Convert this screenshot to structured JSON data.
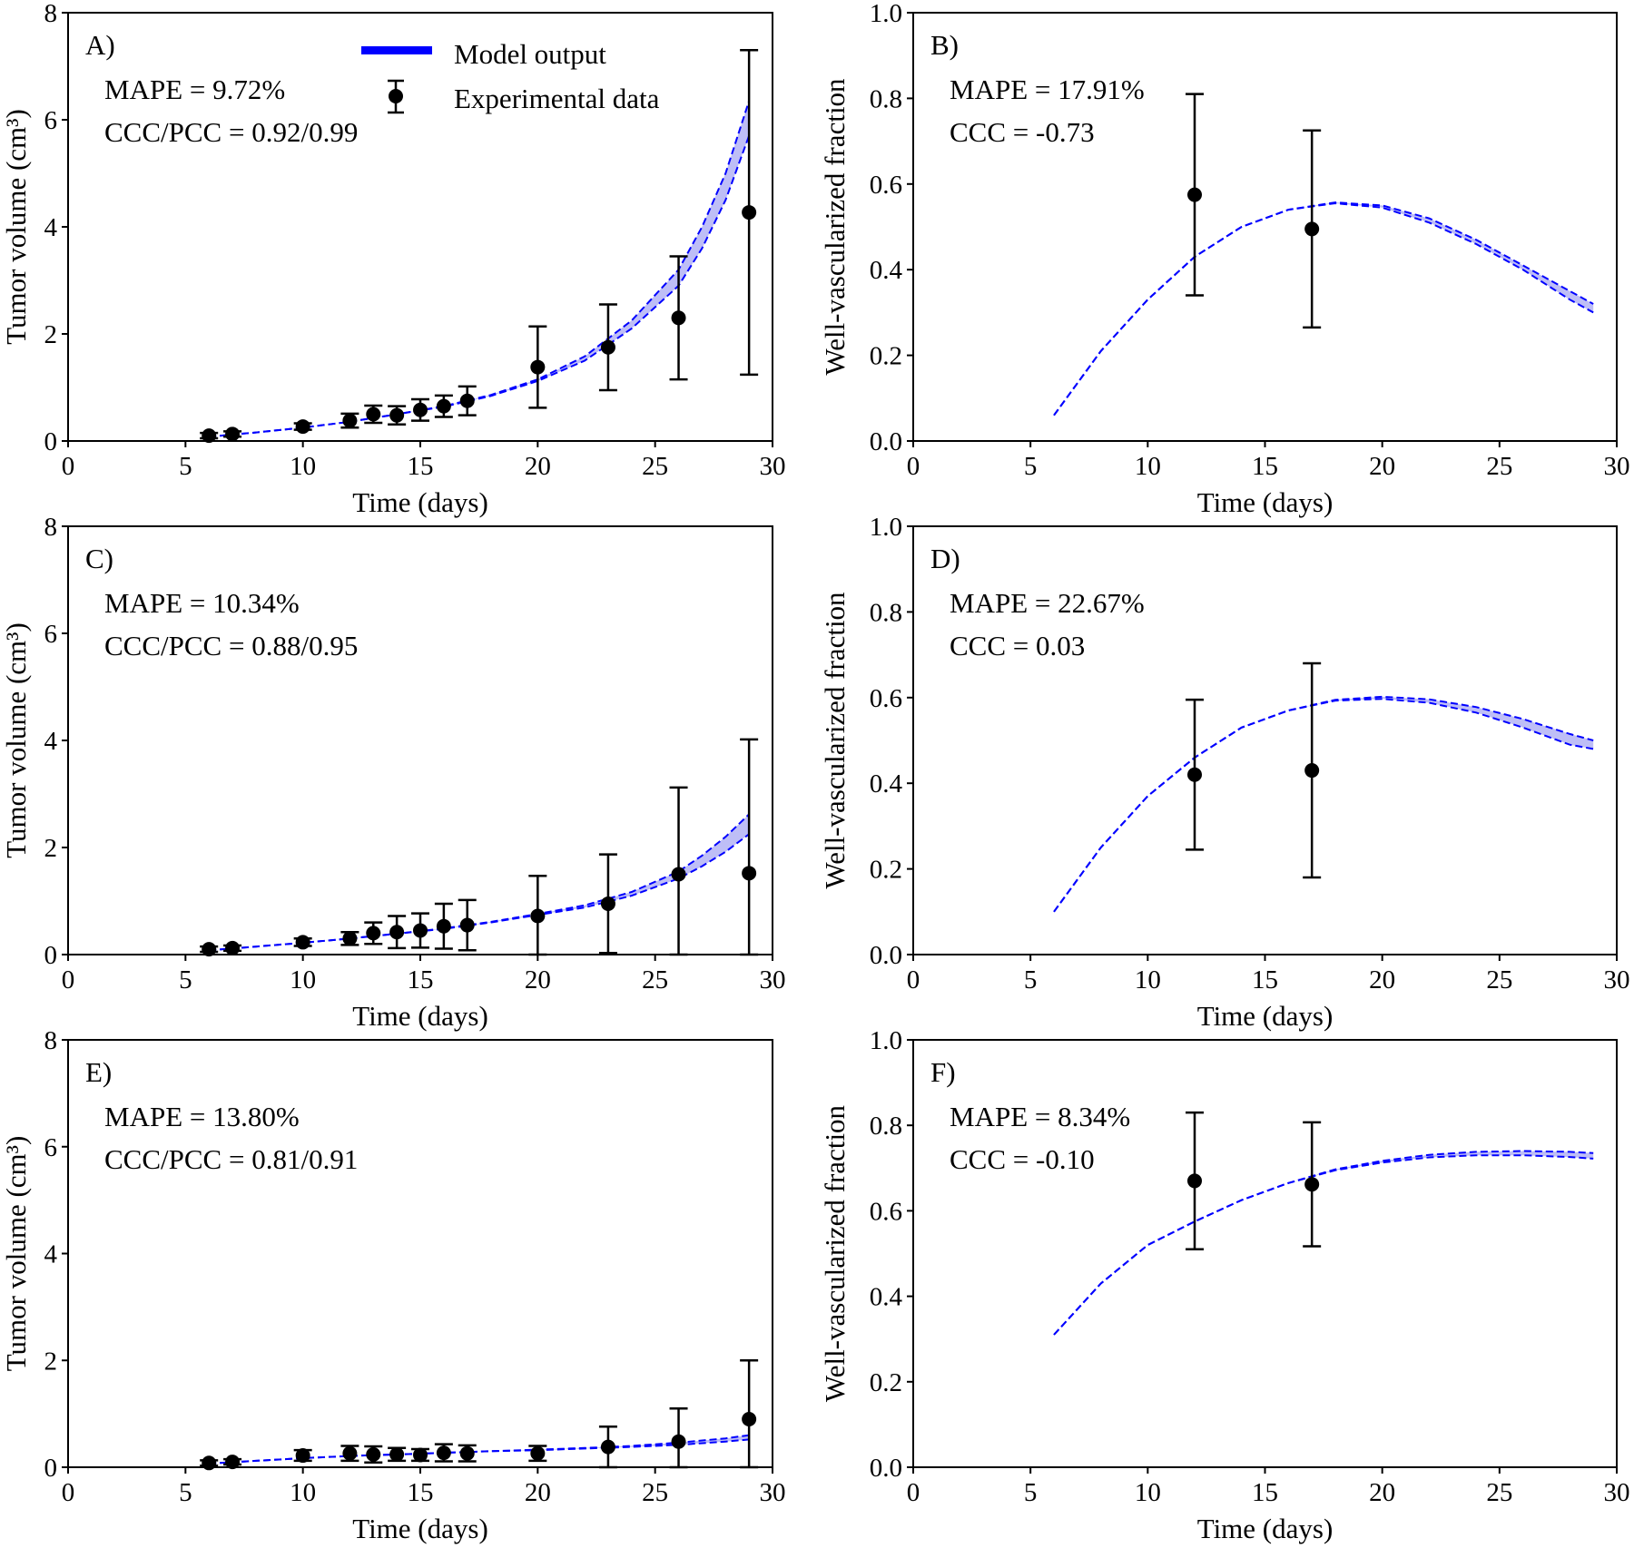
{
  "legend": {
    "model": "Model output",
    "data": "Experimental data"
  },
  "colors": {
    "model": "#0000ff",
    "band": "#b3b3f5",
    "data": "#000000"
  },
  "chart_data": [
    {
      "panel": "A)",
      "type": "line",
      "ylabel": "Tumor volume (cm³)",
      "xlabel": "Time (days)",
      "xlim": [
        0,
        30
      ],
      "ylim": [
        0,
        8
      ],
      "xticks": [
        "0",
        "5",
        "10",
        "15",
        "20",
        "25",
        "30"
      ],
      "yticks": [
        "0",
        "2",
        "4",
        "6",
        "8"
      ],
      "annotations": [
        "MAPE = 9.72%",
        "CCC/PCC = 0.92/0.99"
      ],
      "legend_position": "top-center",
      "data": {
        "x": [
          6,
          7,
          10,
          12,
          13,
          14,
          15,
          16,
          17,
          20,
          23,
          26,
          29
        ],
        "y": [
          0.1,
          0.13,
          0.27,
          0.38,
          0.5,
          0.48,
          0.58,
          0.65,
          0.75,
          1.38,
          1.75,
          2.3,
          4.27
        ],
        "err": [
          0.05,
          0.05,
          0.06,
          0.13,
          0.16,
          0.17,
          0.2,
          0.2,
          0.27,
          0.76,
          0.8,
          1.15,
          3.03
        ]
      },
      "model": {
        "x": [
          6,
          8,
          10,
          12,
          14,
          16,
          18,
          20,
          22,
          24,
          26,
          27,
          28,
          29
        ],
        "lower": [
          0.08,
          0.16,
          0.25,
          0.36,
          0.5,
          0.64,
          0.84,
          1.12,
          1.5,
          2.1,
          2.9,
          3.6,
          4.5,
          5.7
        ],
        "upper": [
          0.08,
          0.16,
          0.25,
          0.36,
          0.5,
          0.65,
          0.86,
          1.15,
          1.58,
          2.25,
          3.2,
          4.0,
          5.0,
          6.35
        ]
      }
    },
    {
      "panel": "B)",
      "type": "line",
      "ylabel": "Well-vascularized fraction",
      "xlabel": "Time (days)",
      "xlim": [
        0,
        30
      ],
      "ylim": [
        0,
        1
      ],
      "xticks": [
        "0",
        "5",
        "10",
        "15",
        "20",
        "25",
        "30"
      ],
      "yticks": [
        "0.0",
        "0.2",
        "0.4",
        "0.6",
        "0.8",
        "1.0"
      ],
      "annotations": [
        "MAPE = 17.91%",
        "CCC = -0.73"
      ],
      "data": {
        "x": [
          12,
          17
        ],
        "y": [
          0.575,
          0.495
        ],
        "err": [
          0.235,
          0.23
        ]
      },
      "model": {
        "x": [
          6,
          8,
          10,
          12,
          14,
          16,
          18,
          20,
          22,
          24,
          26,
          28,
          29
        ],
        "lower": [
          0.06,
          0.21,
          0.33,
          0.43,
          0.5,
          0.54,
          0.555,
          0.545,
          0.51,
          0.46,
          0.4,
          0.33,
          0.3
        ],
        "upper": [
          0.06,
          0.21,
          0.33,
          0.43,
          0.5,
          0.54,
          0.557,
          0.55,
          0.52,
          0.47,
          0.41,
          0.35,
          0.32
        ]
      }
    },
    {
      "panel": "C)",
      "type": "line",
      "ylabel": "Tumor volume (cm³)",
      "xlabel": "Time (days)",
      "xlim": [
        0,
        30
      ],
      "ylim": [
        0,
        8
      ],
      "xticks": [
        "0",
        "5",
        "10",
        "15",
        "20",
        "25",
        "30"
      ],
      "yticks": [
        "0",
        "2",
        "4",
        "6",
        "8"
      ],
      "annotations": [
        "MAPE = 10.34%",
        "CCC/PCC = 0.88/0.95"
      ],
      "data": {
        "x": [
          6,
          7,
          10,
          12,
          13,
          14,
          15,
          16,
          17,
          20,
          23,
          26,
          29
        ],
        "y": [
          0.1,
          0.12,
          0.23,
          0.3,
          0.4,
          0.42,
          0.45,
          0.53,
          0.55,
          0.72,
          0.95,
          1.5,
          1.52
        ],
        "err": [
          0.05,
          0.05,
          0.07,
          0.12,
          0.2,
          0.3,
          0.32,
          0.42,
          0.47,
          0.75,
          0.92,
          1.62,
          2.5
        ]
      },
      "model": {
        "x": [
          6,
          8,
          10,
          12,
          14,
          16,
          18,
          20,
          22,
          24,
          26,
          27,
          28,
          29
        ],
        "lower": [
          0.08,
          0.15,
          0.22,
          0.3,
          0.39,
          0.48,
          0.6,
          0.74,
          0.88,
          1.1,
          1.42,
          1.65,
          1.92,
          2.25
        ],
        "upper": [
          0.08,
          0.15,
          0.22,
          0.3,
          0.39,
          0.49,
          0.61,
          0.76,
          0.92,
          1.17,
          1.55,
          1.85,
          2.2,
          2.62
        ]
      }
    },
    {
      "panel": "D)",
      "type": "line",
      "ylabel": "Well-vascularized fraction",
      "xlabel": "Time (days)",
      "xlim": [
        0,
        30
      ],
      "ylim": [
        0,
        1
      ],
      "xticks": [
        "0",
        "5",
        "10",
        "15",
        "20",
        "25",
        "30"
      ],
      "yticks": [
        "0.0",
        "0.2",
        "0.4",
        "0.6",
        "0.8",
        "1.0"
      ],
      "annotations": [
        "MAPE = 22.67%",
        "CCC = 0.03"
      ],
      "data": {
        "x": [
          12,
          17
        ],
        "y": [
          0.42,
          0.43
        ],
        "err": [
          0.175,
          0.25
        ]
      },
      "model": {
        "x": [
          6,
          8,
          10,
          12,
          14,
          16,
          18,
          20,
          22,
          24,
          26,
          28,
          29
        ],
        "lower": [
          0.1,
          0.25,
          0.37,
          0.46,
          0.53,
          0.57,
          0.593,
          0.597,
          0.588,
          0.565,
          0.53,
          0.49,
          0.48
        ],
        "upper": [
          0.1,
          0.25,
          0.37,
          0.46,
          0.53,
          0.57,
          0.595,
          0.602,
          0.596,
          0.578,
          0.55,
          0.515,
          0.5
        ]
      }
    },
    {
      "panel": "E)",
      "type": "line",
      "ylabel": "Tumor volume (cm³)",
      "xlabel": "Time (days)",
      "xlim": [
        0,
        30
      ],
      "ylim": [
        0,
        8
      ],
      "xticks": [
        "0",
        "5",
        "10",
        "15",
        "20",
        "25",
        "30"
      ],
      "yticks": [
        "0",
        "2",
        "4",
        "6",
        "8"
      ],
      "annotations": [
        "MAPE = 13.80%",
        "CCC/PCC = 0.81/0.91"
      ],
      "data": {
        "x": [
          6,
          7,
          10,
          12,
          13,
          14,
          15,
          16,
          17,
          20,
          23,
          26,
          29
        ],
        "y": [
          0.08,
          0.1,
          0.22,
          0.26,
          0.24,
          0.24,
          0.23,
          0.27,
          0.26,
          0.26,
          0.38,
          0.48,
          0.9
        ],
        "err": [
          0.05,
          0.05,
          0.1,
          0.14,
          0.15,
          0.12,
          0.11,
          0.16,
          0.15,
          0.14,
          0.38,
          0.62,
          1.1
        ]
      },
      "model": {
        "x": [
          6,
          8,
          10,
          12,
          14,
          16,
          18,
          20,
          22,
          24,
          26,
          28,
          29
        ],
        "lower": [
          0.07,
          0.12,
          0.17,
          0.21,
          0.24,
          0.27,
          0.3,
          0.32,
          0.35,
          0.38,
          0.42,
          0.48,
          0.52
        ],
        "upper": [
          0.07,
          0.12,
          0.17,
          0.21,
          0.24,
          0.27,
          0.3,
          0.33,
          0.36,
          0.4,
          0.46,
          0.54,
          0.6
        ]
      }
    },
    {
      "panel": "F)",
      "type": "line",
      "ylabel": "Well-vascularized fraction",
      "xlabel": "Time (days)",
      "xlim": [
        0,
        30
      ],
      "ylim": [
        0,
        1
      ],
      "xticks": [
        "0",
        "5",
        "10",
        "15",
        "20",
        "25",
        "30"
      ],
      "yticks": [
        "0.0",
        "0.2",
        "0.4",
        "0.6",
        "0.8",
        "1.0"
      ],
      "annotations": [
        "MAPE = 8.34%",
        "CCC = -0.10"
      ],
      "data": {
        "x": [
          12,
          17
        ],
        "y": [
          0.67,
          0.662
        ],
        "err": [
          0.16,
          0.145
        ]
      },
      "model": {
        "x": [
          6,
          8,
          10,
          12,
          14,
          16,
          18,
          20,
          22,
          24,
          26,
          28,
          29
        ],
        "lower": [
          0.31,
          0.43,
          0.52,
          0.575,
          0.625,
          0.665,
          0.695,
          0.713,
          0.725,
          0.73,
          0.73,
          0.726,
          0.722
        ],
        "upper": [
          0.31,
          0.43,
          0.52,
          0.575,
          0.625,
          0.665,
          0.697,
          0.717,
          0.731,
          0.738,
          0.74,
          0.738,
          0.735
        ]
      }
    }
  ]
}
